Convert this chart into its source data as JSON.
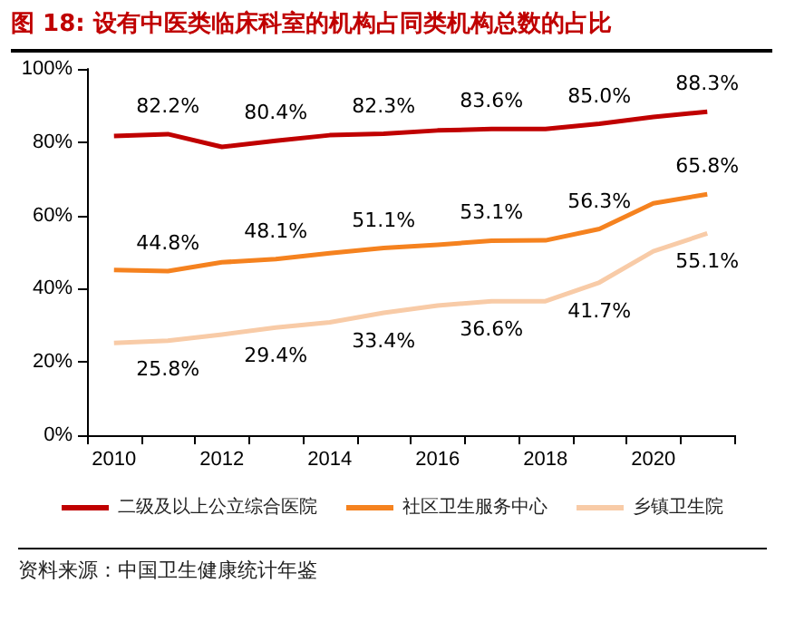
{
  "chart_data": {
    "type": "line",
    "title": "图 18: 设有中医类临床科室的机构占同类机构总数的占比",
    "categories": [
      "2010",
      null,
      "2012",
      null,
      "2014",
      null,
      "2016",
      null,
      "2018",
      null,
      "2020",
      null
    ],
    "series": [
      {
        "name": "二级及以上公立综合医院",
        "color": "#c00000",
        "values": [
          81.7,
          82.2,
          78.7,
          80.4,
          81.9,
          82.3,
          83.2,
          83.6,
          83.6,
          85.0,
          86.9,
          88.3
        ],
        "value_labels": [
          null,
          "82.2%",
          null,
          "80.4%",
          null,
          "82.3%",
          null,
          "83.6%",
          null,
          "85.0%",
          null,
          "88.3%"
        ]
      },
      {
        "name": "社区卫生服务中心",
        "color": "#f5821f",
        "values": [
          45.1,
          44.8,
          47.2,
          48.1,
          49.7,
          51.1,
          52.0,
          53.1,
          53.2,
          56.3,
          63.3,
          65.8
        ],
        "value_labels": [
          null,
          "44.8%",
          null,
          "48.1%",
          null,
          "51.1%",
          null,
          "53.1%",
          null,
          "56.3%",
          null,
          "65.8%"
        ]
      },
      {
        "name": "乡镇卫生院",
        "color": "#f8cba7",
        "values": [
          25.2,
          25.8,
          27.5,
          29.4,
          30.8,
          33.4,
          35.4,
          36.6,
          36.6,
          41.7,
          50.2,
          55.1
        ],
        "value_labels": [
          null,
          "25.8%",
          null,
          "29.4%",
          null,
          "33.4%",
          null,
          "36.6%",
          null,
          "41.7%",
          null,
          "55.1%"
        ]
      }
    ],
    "ylim": [
      0,
      100
    ],
    "yticks": [
      {
        "value": 0,
        "label": "0%"
      },
      {
        "value": 20,
        "label": "20%"
      },
      {
        "value": 40,
        "label": "40%"
      },
      {
        "value": 60,
        "label": "60%"
      },
      {
        "value": 80,
        "label": "80%"
      },
      {
        "value": 100,
        "label": "100%"
      }
    ],
    "grid": false,
    "legend": "bottom",
    "marker": "none",
    "line_style": "solid",
    "annotations": [
      "资料来源：中国卫生健康统计年鉴"
    ]
  }
}
